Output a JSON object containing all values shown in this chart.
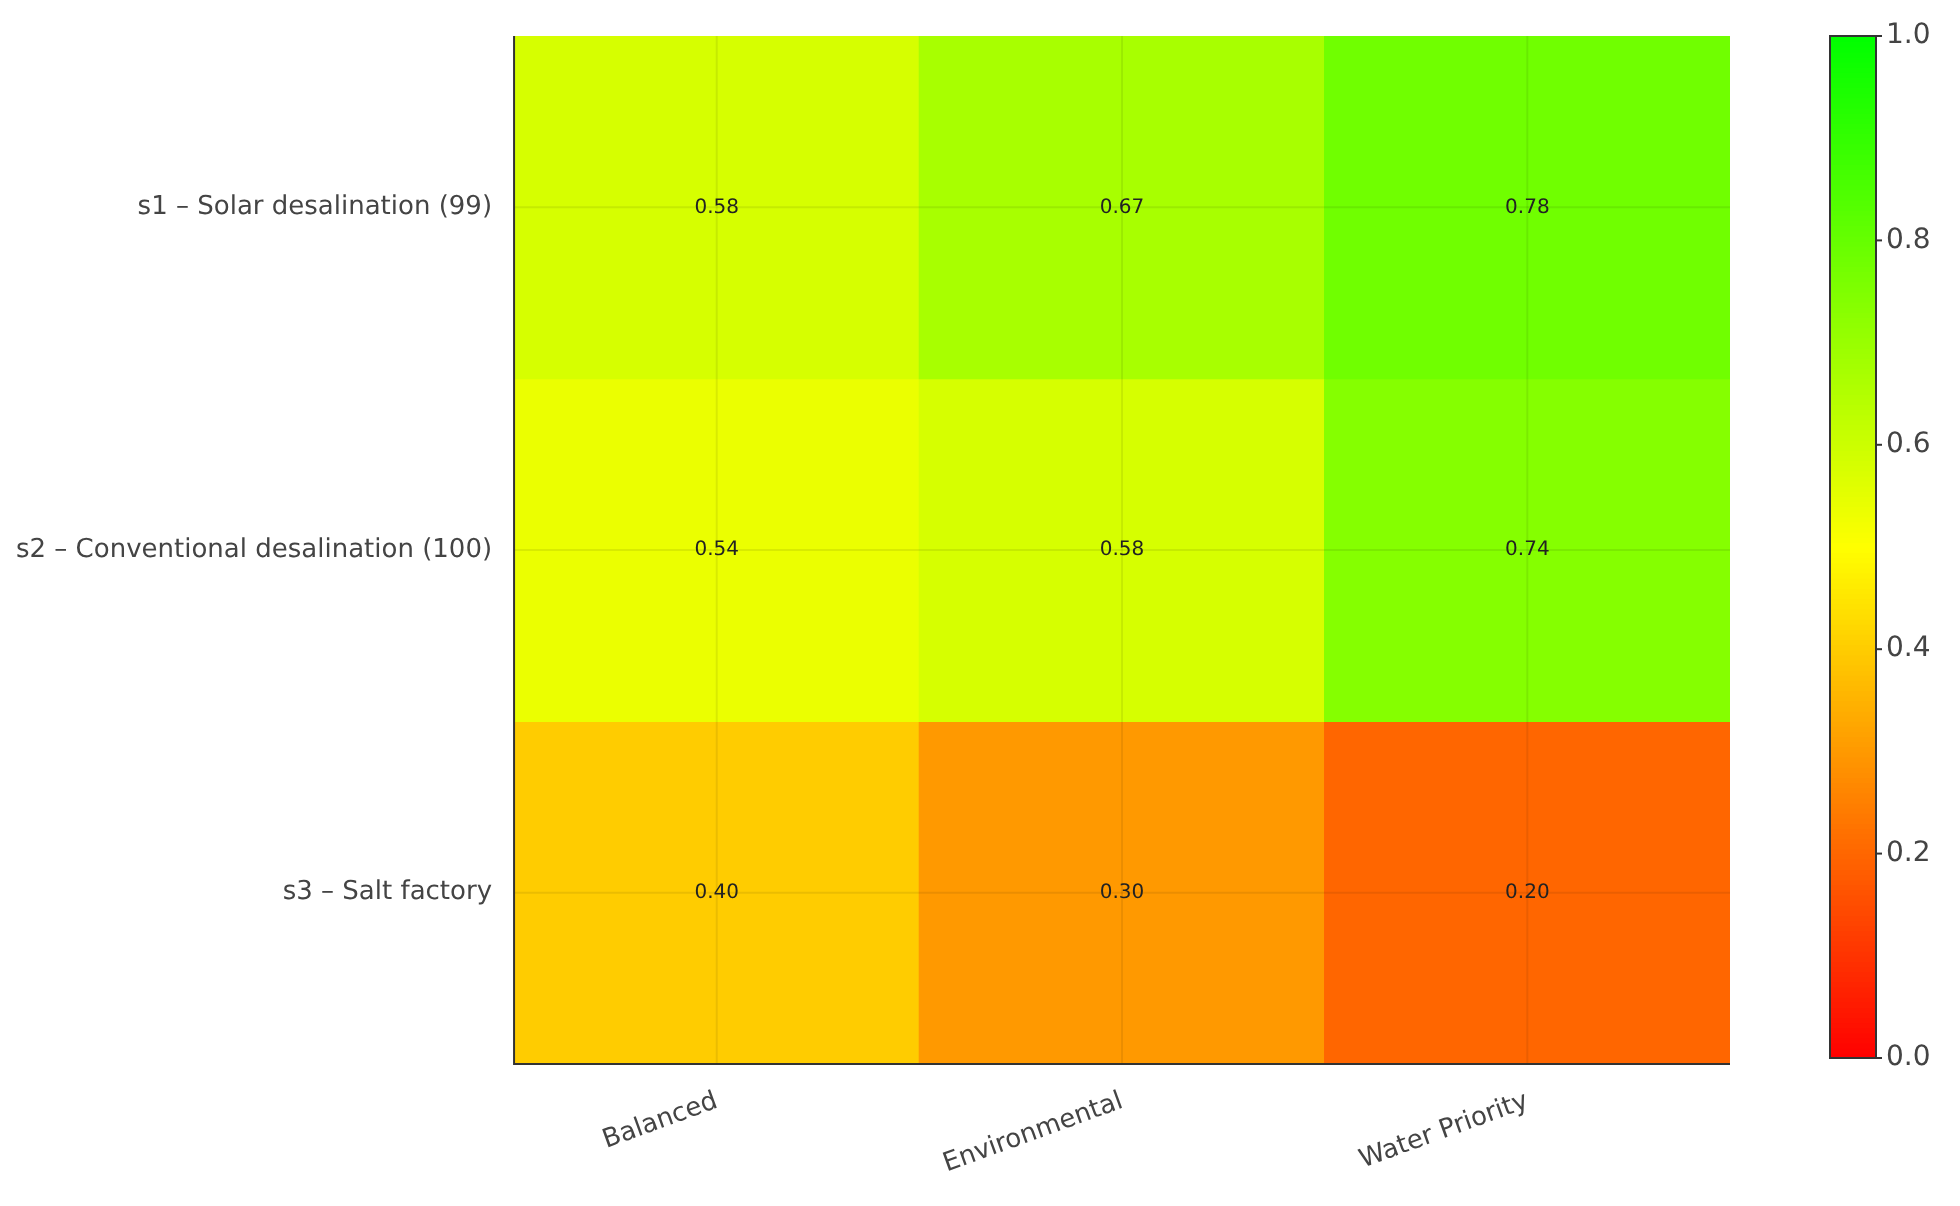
{
  "chart_data": {
    "type": "heatmap",
    "categories": [
      "Balanced",
      "Environmental",
      "Water Priority"
    ],
    "y_categories": [
      "s1 – Solar desalination (99)",
      "s2 – Conventional desalination (100)",
      "s3 – Salt factory"
    ],
    "cells": [
      [
        0.58,
        0.67,
        0.78
      ],
      [
        0.54,
        0.58,
        0.74
      ],
      [
        0.4,
        0.3,
        0.2
      ]
    ],
    "cell_labels": [
      [
        "0.58",
        "0.67",
        "0.78"
      ],
      [
        "0.54",
        "0.58",
        "0.74"
      ],
      [
        "0.40",
        "0.30",
        "0.20"
      ]
    ],
    "clim": [
      0.0,
      1.0
    ],
    "cticks": [
      {
        "value": 0,
        "label": "0.0"
      },
      {
        "value": 0.2,
        "label": "0.2"
      },
      {
        "value": 0.4,
        "label": "0.4"
      },
      {
        "value": 0.6,
        "label": "0.6"
      },
      {
        "value": 0.8,
        "label": "0.8"
      },
      {
        "value": 1,
        "label": "1.0"
      }
    ],
    "data_labels": true,
    "grid": true
  }
}
